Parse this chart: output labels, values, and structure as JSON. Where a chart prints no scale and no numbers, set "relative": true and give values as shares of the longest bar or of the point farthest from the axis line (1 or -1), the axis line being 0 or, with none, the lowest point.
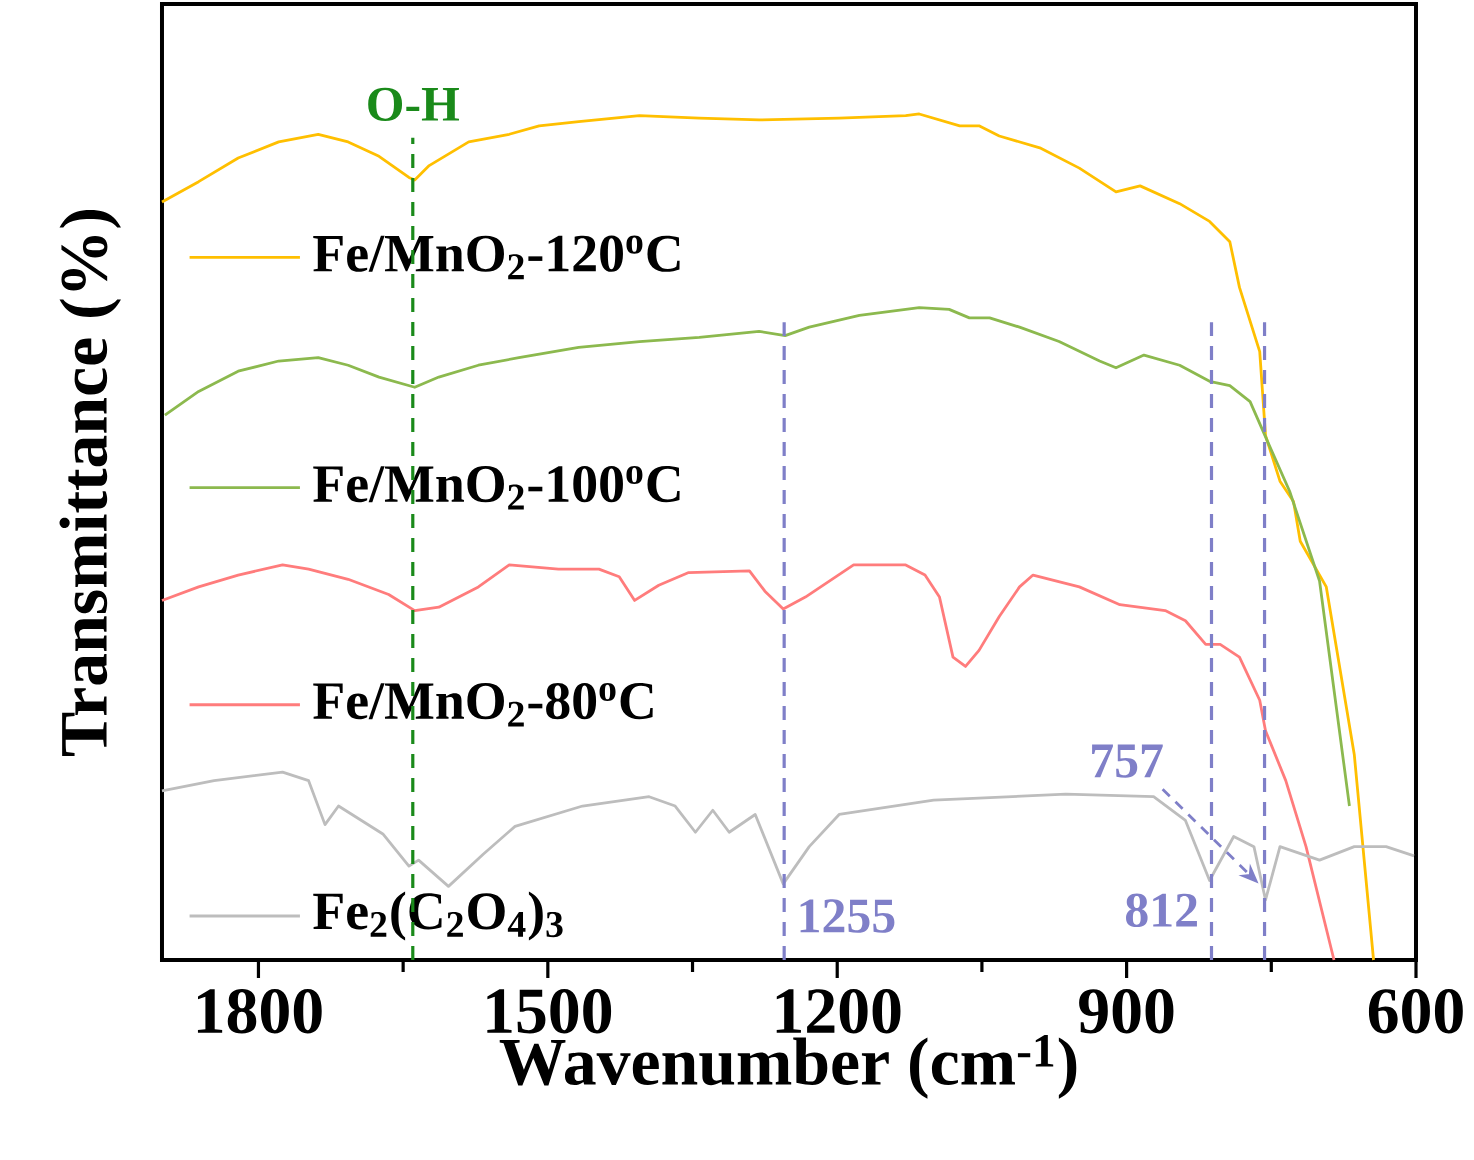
{
  "chart_data": {
    "type": "line",
    "xlabel": "Wavenumber (cm$^{-1}$)",
    "ylabel": "Transmittance (%)",
    "xlim": [
      1900,
      600
    ],
    "xticks": [
      1800,
      {
        "value": 1650,
        "label": null
      },
      1500,
      {
        "value": 1350,
        "label": null
      },
      1200,
      {
        "value": 1050,
        "label": null
      },
      900,
      {
        "value": 750,
        "label": null
      },
      600
    ],
    "relative": true,
    "legend": "left",
    "series": [
      {
        "name": "Fe/MnO$_{2}$-120$^{o}$C",
        "color": "#ffbf00",
        "x": [
          1900,
          1862,
          1821,
          1779,
          1738,
          1707,
          1675,
          1644,
          1638,
          1623,
          1582,
          1540,
          1509,
          1468,
          1405,
          1343,
          1281,
          1198,
          1129,
          1115,
          1073,
          1053,
          1032,
          990,
          949,
          911,
          886,
          845,
          814,
          793,
          783,
          762,
          756,
          741,
          727,
          720,
          693,
          664,
          644
        ],
        "values": [
          0.896,
          0.92,
          0.948,
          0.967,
          0.976,
          0.967,
          0.95,
          0.925,
          0.922,
          0.939,
          0.967,
          0.976,
          0.986,
          0.991,
          0.998,
          0.995,
          0.993,
          0.995,
          0.998,
          1.0,
          0.986,
          0.986,
          0.974,
          0.96,
          0.936,
          0.908,
          0.915,
          0.894,
          0.873,
          0.849,
          0.795,
          0.719,
          0.62,
          0.566,
          0.542,
          0.495,
          0.441,
          0.243,
          0
        ]
      },
      {
        "name": "Fe/MnO$_{2}$-100$^{o}$C",
        "color": "#8cb94e",
        "x": [
          1897,
          1862,
          1821,
          1779,
          1738,
          1707,
          1675,
          1638,
          1613,
          1572,
          1530,
          1468,
          1405,
          1343,
          1281,
          1254,
          1229,
          1177,
          1115,
          1084,
          1063,
          1042,
          1011,
          970,
          928,
          911,
          882,
          845,
          814,
          793,
          772,
          752,
          731,
          700,
          669
        ],
        "values": [
          0.644,
          0.672,
          0.696,
          0.708,
          0.712,
          0.703,
          0.689,
          0.677,
          0.689,
          0.703,
          0.712,
          0.724,
          0.731,
          0.736,
          0.743,
          0.738,
          0.748,
          0.762,
          0.771,
          0.769,
          0.759,
          0.759,
          0.748,
          0.731,
          0.708,
          0.7,
          0.715,
          0.703,
          0.684,
          0.679,
          0.66,
          0.608,
          0.554,
          0.448,
          0.182
        ]
      },
      {
        "name": "Fe/MnO$_{2}$-80$^{o}$C",
        "color": "#ff7c7c",
        "x": [
          1900,
          1862,
          1821,
          1775,
          1748,
          1707,
          1665,
          1638,
          1613,
          1572,
          1540,
          1489,
          1447,
          1426,
          1410,
          1385,
          1354,
          1291,
          1275,
          1256,
          1233,
          1183,
          1129,
          1109,
          1094,
          1080,
          1067,
          1053,
          1032,
          1011,
          997,
          949,
          907,
          860,
          839,
          818,
          803,
          783,
          762,
          756,
          735,
          714,
          685
        ],
        "values": [
          0.425,
          0.441,
          0.455,
          0.467,
          0.462,
          0.45,
          0.432,
          0.413,
          0.417,
          0.441,
          0.467,
          0.462,
          0.462,
          0.453,
          0.425,
          0.443,
          0.458,
          0.46,
          0.436,
          0.415,
          0.429,
          0.467,
          0.467,
          0.455,
          0.429,
          0.358,
          0.347,
          0.366,
          0.406,
          0.441,
          0.455,
          0.441,
          0.42,
          0.413,
          0.401,
          0.373,
          0.373,
          0.358,
          0.307,
          0.271,
          0.212,
          0.134,
          0
        ]
      },
      {
        "name": "Fe$_{2}$(C$_{2}$O$_{4}$)$_{3}$",
        "color": "#bdbdbd",
        "x": [
          1900,
          1846,
          1775,
          1748,
          1731,
          1717,
          1671,
          1644,
          1634,
          1603,
          1567,
          1534,
          1464,
          1395,
          1368,
          1347,
          1329,
          1312,
          1285,
          1256,
          1229,
          1198,
          1100,
          963,
          872,
          839,
          814,
          789,
          768,
          756,
          741,
          700,
          664,
          631,
          602
        ],
        "values": [
          0.2,
          0.212,
          0.222,
          0.212,
          0.16,
          0.182,
          0.149,
          0.111,
          0.118,
          0.087,
          0.125,
          0.158,
          0.182,
          0.193,
          0.182,
          0.151,
          0.177,
          0.151,
          0.172,
          0.09,
          0.134,
          0.172,
          0.189,
          0.196,
          0.193,
          0.165,
          0.094,
          0.146,
          0.134,
          0.071,
          0.134,
          0.118,
          0.134,
          0.134,
          0.123
        ]
      }
    ],
    "ref_lines": [
      {
        "axis": "x",
        "value": 1640,
        "label": "O-H",
        "color": "#1a8a1a",
        "line_style": "dashed"
      },
      {
        "axis": "x",
        "value": 1255,
        "label": "1255",
        "color": "#7f7fc8",
        "line_style": "dashed"
      },
      {
        "axis": "x",
        "value": 812,
        "label": "812",
        "color": "#7f7fc8",
        "line_style": "dashed"
      },
      {
        "axis": "x",
        "value": 757,
        "label": "757",
        "color": "#7f7fc8",
        "line_style": "dashed"
      }
    ]
  }
}
